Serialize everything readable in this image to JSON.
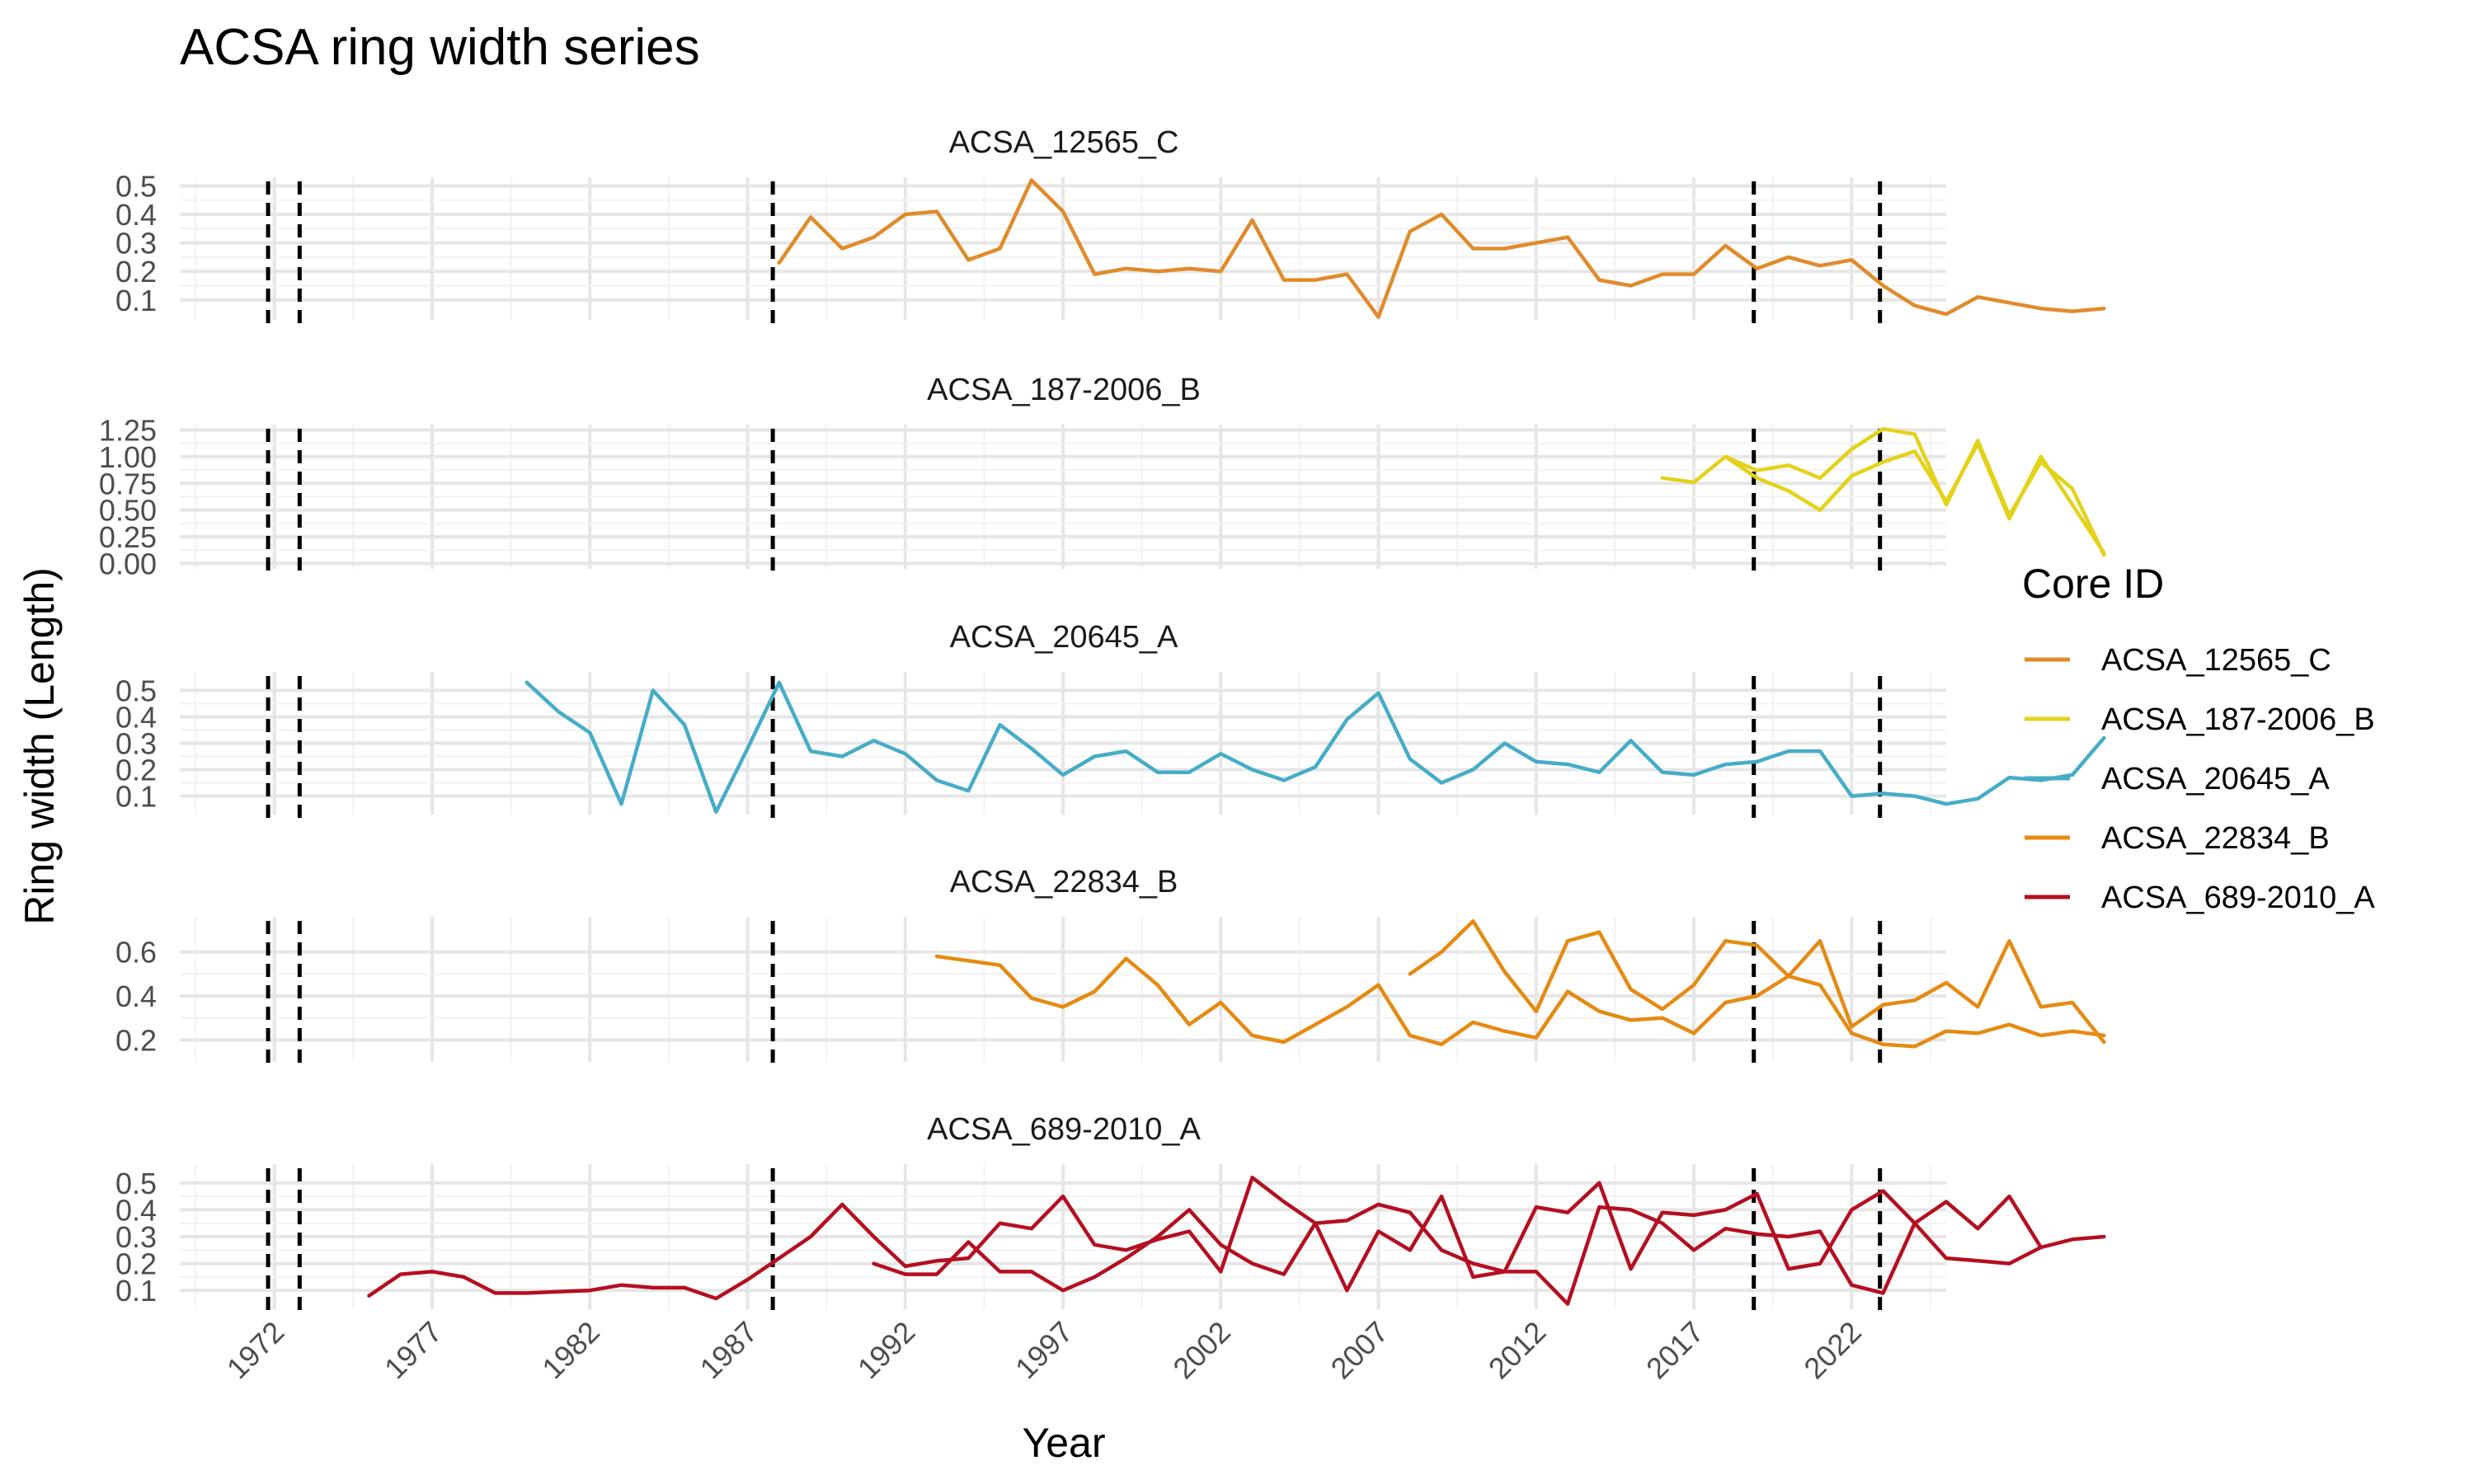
{
  "chart_data": {
    "type": "line",
    "title": "ACSA ring width series",
    "xlabel": "Year",
    "ylabel": "Ring width (Length)",
    "xlim": [
      1969,
      2025
    ],
    "x_ticks": [
      "1972",
      "1977",
      "1982",
      "1987",
      "1992",
      "1997",
      "2002",
      "2007",
      "2012",
      "2017",
      "2022"
    ],
    "vlines": [
      1971.8,
      1972.8,
      1987.8,
      2018.9,
      2022.9
    ],
    "legend": {
      "title": "Core ID",
      "position": "right",
      "entries": [
        {
          "label": "ACSA_12565_C",
          "color": "#E08B2B"
        },
        {
          "label": "ACSA_187-2006_B",
          "color": "#E3D21A"
        },
        {
          "label": "ACSA_20645_A",
          "color": "#46ACC8"
        },
        {
          "label": "ACSA_22834_B",
          "color": "#E58A12"
        },
        {
          "label": "ACSA_689-2010_A",
          "color": "#B40F20"
        }
      ]
    },
    "panels": [
      {
        "strip": "ACSA_12565_C",
        "ylim": [
          0.03,
          0.53
        ],
        "y_ticks": [
          "0.1",
          "0.2",
          "0.3",
          "0.4",
          "0.5"
        ],
        "y_tick_values": [
          0.1,
          0.2,
          0.3,
          0.4,
          0.5
        ],
        "series": [
          {
            "color": "#E08B2B",
            "start": 1988,
            "values": [
              0.23,
              0.39,
              0.28,
              0.32,
              0.4,
              0.41,
              0.24,
              0.28,
              0.52,
              0.41,
              0.19,
              0.21,
              0.2,
              0.21,
              0.2,
              0.38,
              0.17,
              0.17,
              0.19,
              0.04,
              0.34,
              0.4,
              0.28,
              0.28,
              0.3,
              0.32,
              0.17,
              0.15,
              0.19,
              0.19,
              0.29,
              0.21,
              0.25,
              0.22,
              0.24,
              0.15,
              0.08,
              0.05,
              0.11,
              0.09,
              0.07,
              0.06,
              0.07
            ]
          }
        ]
      },
      {
        "strip": "ACSA_187-2006_B",
        "ylim": [
          -0.05,
          1.3
        ],
        "y_ticks": [
          "0.00",
          "0.25",
          "0.50",
          "0.75",
          "1.00",
          "1.25"
        ],
        "y_tick_values": [
          0.0,
          0.25,
          0.5,
          0.75,
          1.0,
          1.25
        ],
        "series": [
          {
            "color": "#E3D21A",
            "start": 2016,
            "values": [
              0.8,
              0.76,
              1.0,
              0.87,
              0.92,
              0.8,
              1.07,
              1.26,
              1.21,
              0.55,
              1.15,
              0.45,
              0.95,
              0.7,
              0.08
            ]
          },
          {
            "color": "#E3D21A",
            "start": 2018,
            "values": [
              1.0,
              0.8,
              0.68,
              0.5,
              0.82,
              0.95,
              1.05,
              0.58,
              1.12,
              0.42,
              1.0,
              0.55,
              0.1
            ]
          }
        ]
      },
      {
        "strip": "ACSA_20645_A",
        "ylim": [
          0.03,
          0.57
        ],
        "y_ticks": [
          "0.1",
          "0.2",
          "0.3",
          "0.4",
          "0.5"
        ],
        "y_tick_values": [
          0.1,
          0.2,
          0.3,
          0.4,
          0.5
        ],
        "series": [
          {
            "color": "#46ACC8",
            "start": 1980,
            "values": [
              0.53,
              0.42,
              0.34,
              0.07,
              0.5,
              0.37,
              0.04,
              0.28,
              0.53,
              0.27,
              0.25,
              0.31,
              0.26,
              0.16,
              0.12,
              0.37,
              0.28,
              0.18,
              0.25,
              0.27,
              0.19,
              0.19,
              0.26,
              0.2,
              0.16,
              0.21,
              0.39,
              0.49,
              0.24,
              0.15,
              0.2,
              0.3,
              0.23,
              0.22,
              0.19,
              0.31,
              0.19,
              0.18,
              0.22,
              0.23,
              0.27,
              0.27,
              0.1,
              0.11,
              0.1,
              0.07,
              0.09,
              0.17,
              0.16,
              0.18,
              0.32
            ]
          }
        ]
      },
      {
        "strip": "ACSA_22834_B",
        "ylim": [
          0.1,
          0.76
        ],
        "y_ticks": [
          "0.2",
          "0.4",
          "0.6"
        ],
        "y_tick_values": [
          0.2,
          0.4,
          0.6
        ],
        "series": [
          {
            "color": "#E58A12",
            "start": 1993,
            "values": [
              0.58,
              0.56,
              0.54,
              0.39,
              0.35,
              0.42,
              0.57,
              0.45,
              0.27,
              0.37,
              0.22,
              0.19,
              0.27,
              0.35,
              0.45,
              0.22,
              0.18,
              0.28,
              0.24,
              0.21,
              0.42,
              0.33,
              0.29,
              0.3,
              0.23,
              0.37,
              0.4,
              0.49,
              0.45,
              0.23,
              0.18,
              0.17,
              0.24,
              0.23,
              0.27,
              0.22,
              0.24,
              0.22
            ]
          },
          {
            "color": "#E58A12",
            "start": 2008,
            "values": [
              0.5,
              0.6,
              0.74,
              0.51,
              0.33,
              0.65,
              0.69,
              0.43,
              0.34,
              0.45,
              0.65,
              0.63,
              0.49,
              0.65,
              0.26,
              0.36,
              0.38,
              0.46,
              0.35,
              0.65,
              0.35,
              0.37,
              0.19
            ]
          }
        ]
      },
      {
        "strip": "ACSA_689-2010_A",
        "ylim": [
          0.03,
          0.57
        ],
        "y_ticks": [
          "0.1",
          "0.2",
          "0.3",
          "0.4",
          "0.5"
        ],
        "y_tick_values": [
          0.1,
          0.2,
          0.3,
          0.4,
          0.5
        ],
        "series": [
          {
            "color": "#B40F20",
            "start": 1975,
            "values": [
              0.08,
              0.16,
              0.17,
              0.15,
              0.09,
              0.09,
              0.095,
              0.1,
              0.12,
              0.11,
              0.11,
              0.07,
              0.14,
              0.22,
              0.3,
              0.42,
              0.3,
              0.19,
              0.21,
              0.22,
              0.35,
              0.33,
              0.45,
              0.27,
              0.25,
              0.29,
              0.32,
              0.17,
              0.52,
              0.43,
              0.35,
              0.36,
              0.42,
              0.39,
              0.25,
              0.2,
              0.17,
              0.41,
              0.39,
              0.5,
              0.18,
              0.39,
              0.38,
              0.4,
              0.46,
              0.18,
              0.2,
              0.4,
              0.47,
              0.35,
              0.22,
              0.21,
              0.2,
              0.26
            ]
          },
          {
            "color": "#B40F20",
            "start": 1991,
            "values": [
              0.2,
              0.16,
              0.16,
              0.28,
              0.17,
              0.17,
              0.1,
              0.15,
              0.22,
              0.3,
              0.4,
              0.27,
              0.2,
              0.16,
              0.35,
              0.1,
              0.32,
              0.25,
              0.45,
              0.15,
              0.17,
              0.17,
              0.05,
              0.41,
              0.4,
              0.35,
              0.25,
              0.33,
              0.31,
              0.3,
              0.32,
              0.12,
              0.09,
              0.35,
              0.43,
              0.33,
              0.45,
              0.26,
              0.29,
              0.3
            ]
          }
        ]
      }
    ]
  }
}
